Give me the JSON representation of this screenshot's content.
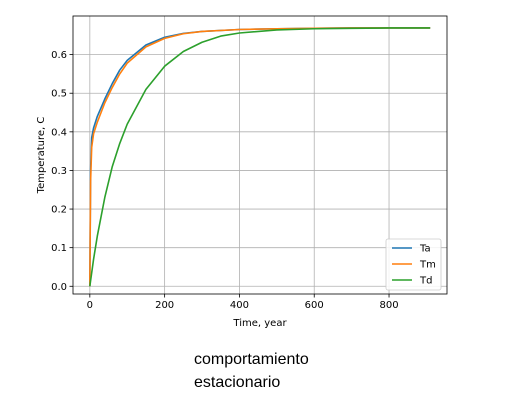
{
  "chart_data": {
    "type": "line",
    "xlabel": "Time, year",
    "ylabel": "Temperature, C",
    "xlim": [
      -45,
      955
    ],
    "ylim": [
      -0.02,
      0.7
    ],
    "xticks": [
      0,
      200,
      400,
      600,
      800
    ],
    "yticks": [
      0.0,
      0.1,
      0.2,
      0.3,
      0.4,
      0.5,
      0.6
    ],
    "ytick_labels": [
      "0.0",
      "0.1",
      "0.2",
      "0.3",
      "0.4",
      "0.5",
      "0.6"
    ],
    "grid": true,
    "legend_position": "lower-right",
    "series": [
      {
        "name": "Ta",
        "color": "#1f77b4",
        "x": [
          0,
          2,
          5,
          10,
          20,
          40,
          60,
          80,
          100,
          150,
          200,
          250,
          300,
          400,
          500,
          600,
          700,
          800,
          910
        ],
        "y": [
          0.0,
          0.3,
          0.385,
          0.41,
          0.44,
          0.485,
          0.525,
          0.56,
          0.585,
          0.625,
          0.645,
          0.655,
          0.66,
          0.665,
          0.667,
          0.668,
          0.669,
          0.669,
          0.669
        ]
      },
      {
        "name": "Tm",
        "color": "#ff7f0e",
        "x": [
          0,
          2,
          5,
          10,
          20,
          40,
          60,
          80,
          100,
          150,
          200,
          250,
          300,
          400,
          500,
          600,
          700,
          800,
          910
        ],
        "y": [
          0.0,
          0.27,
          0.36,
          0.395,
          0.425,
          0.475,
          0.515,
          0.55,
          0.578,
          0.62,
          0.642,
          0.654,
          0.66,
          0.665,
          0.667,
          0.668,
          0.669,
          0.669,
          0.669
        ]
      },
      {
        "name": "Td",
        "color": "#2ca02c",
        "x": [
          0,
          10,
          20,
          40,
          60,
          80,
          100,
          150,
          200,
          250,
          300,
          350,
          400,
          500,
          600,
          700,
          800,
          910
        ],
        "y": [
          0.0,
          0.07,
          0.13,
          0.23,
          0.31,
          0.37,
          0.42,
          0.51,
          0.57,
          0.608,
          0.632,
          0.648,
          0.656,
          0.664,
          0.667,
          0.668,
          0.669,
          0.669
        ]
      }
    ]
  },
  "caption": {
    "line1": "comportamiento",
    "line2": "estacionario"
  }
}
